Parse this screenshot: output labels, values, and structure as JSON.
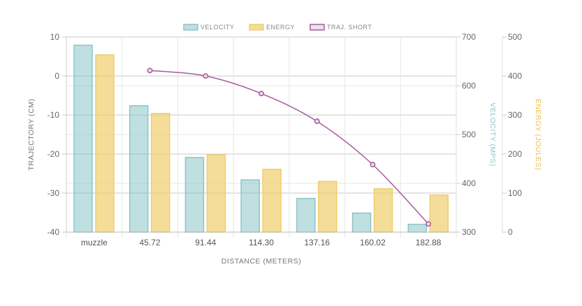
{
  "chart_data": {
    "type": "bar",
    "xlabel": "DISTANCE (METERS)",
    "categories": [
      "muzzle",
      "45.72",
      "91.44",
      "114.30",
      "137.16",
      "160.02",
      "182.88"
    ],
    "legend": {
      "placement": "top-center",
      "entries": [
        "VELOCITY",
        "ENERGY",
        "TRAJ. SHORT"
      ]
    },
    "axes": {
      "left": {
        "label": "TRAJECTORY (CM)",
        "range": [
          -40,
          10
        ],
        "ticks": [
          10,
          0,
          -10,
          -20,
          -30,
          -40
        ]
      },
      "right1": {
        "label": "VELOCITY (MPS)",
        "range": [
          300,
          700
        ],
        "ticks": [
          700,
          600,
          500,
          400,
          300
        ]
      },
      "right2": {
        "label": "ENERGY (JOULES)",
        "range": [
          0,
          500
        ],
        "ticks": [
          500,
          400,
          300,
          200,
          100,
          0
        ]
      }
    },
    "series": [
      {
        "name": "VELOCITY",
        "type": "bar",
        "axis": "right1",
        "color": "#8cc5c7",
        "values": [
          683,
          559,
          453,
          407,
          369,
          339,
          316
        ]
      },
      {
        "name": "ENERGY",
        "type": "bar",
        "axis": "right2",
        "color": "#f0ce6e",
        "values": [
          454,
          304,
          198,
          161,
          130,
          111,
          95
        ]
      },
      {
        "name": "TRAJ. SHORT",
        "type": "line",
        "axis": "left",
        "color": "#a85a9e",
        "values": [
          null,
          1.4,
          0,
          -4.5,
          -11.6,
          -22.7,
          -37.9
        ]
      }
    ]
  }
}
